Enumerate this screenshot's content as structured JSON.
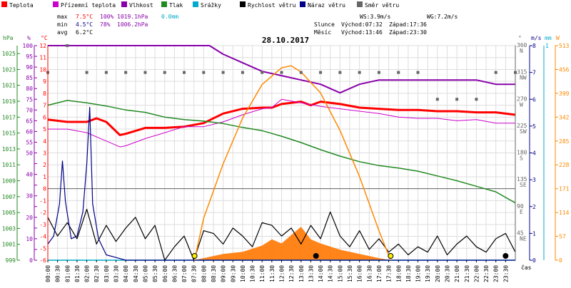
{
  "legend": [
    {
      "label": "Teplota",
      "color": "#ff0000",
      "kind": "line"
    },
    {
      "label": "Přízemní teplota",
      "color": "#cc00cc",
      "kind": "line"
    },
    {
      "label": "Vlhkost",
      "color": "#8800aa",
      "kind": "line"
    },
    {
      "label": "Tlak",
      "color": "#228822",
      "kind": "line"
    },
    {
      "label": "Srážky",
      "color": "#00aacc",
      "kind": "line"
    },
    {
      "label": "Rychlost větru",
      "color": "#000000",
      "kind": "line"
    },
    {
      "label": "Náraz větru",
      "color": "#000088",
      "kind": "line"
    },
    {
      "label": "Směr větru",
      "color": "#666666",
      "kind": "dot"
    }
  ],
  "stats": {
    "rows": [
      {
        "label": "max",
        "temp": "7.5°C",
        "hum": "100%",
        "press": "1019.1hPa",
        "rain": "0.0mm"
      },
      {
        "label": "min",
        "temp": "4.5°C",
        "hum": "78%",
        "press": "1006.2hPa",
        "rain": ""
      },
      {
        "label": "avg",
        "temp": "6.2°C",
        "hum": "",
        "press": "",
        "rain": ""
      }
    ]
  },
  "wind_info": {
    "ws": "WS:3.9m/s",
    "wg": "WG:7.2m/s"
  },
  "sun": {
    "label": "Slunce",
    "rise": "Východ:07:32",
    "set": "Západ:17:36"
  },
  "moon": {
    "label": "Měsíc",
    "rise": "Východ:13:46",
    "set": "Západ:23:30"
  },
  "chart_data": {
    "type": "line",
    "title": "28.10.2017",
    "xlabel": "čas",
    "x_ticks": [
      "00:00",
      "00:30",
      "01:00",
      "01:30",
      "02:00",
      "02:30",
      "03:00",
      "03:30",
      "04:00",
      "04:30",
      "05:00",
      "05:30",
      "06:00",
      "06:30",
      "07:00",
      "07:30",
      "08:00",
      "08:30",
      "09:00",
      "09:30",
      "10:00",
      "10:30",
      "11:00",
      "11:30",
      "12:00",
      "12:30",
      "13:00",
      "13:30",
      "14:00",
      "14:30",
      "15:00",
      "15:30",
      "16:00",
      "16:30",
      "17:00",
      "17:30",
      "18:00",
      "18:30",
      "19:00",
      "19:30",
      "20:00",
      "20:30",
      "21:00",
      "21:30",
      "22:00",
      "22:30",
      "23:00",
      "23:30"
    ],
    "axes": {
      "hpa": {
        "label": "hPa",
        "ticks": [
          "999",
          "1001",
          "1003",
          "1005",
          "1007",
          "1009",
          "1011",
          "1013",
          "1015",
          "1017",
          "1019",
          "1021",
          "1023",
          "1025"
        ],
        "range": [
          999,
          1026
        ]
      },
      "pct": {
        "label": "%",
        "ticks": [
          "0",
          "5",
          "10",
          "15",
          "20",
          "25",
          "30",
          "35",
          "40",
          "45",
          "50",
          "55",
          "60",
          "65",
          "70",
          "75",
          "80",
          "85",
          "90",
          "95",
          "100"
        ],
        "range": [
          0,
          100
        ]
      },
      "temp": {
        "label": "°C",
        "ticks": [
          "-6",
          "-5",
          "-4",
          "-3",
          "-2",
          "-1",
          "0",
          "1",
          "2",
          "3",
          "4",
          "5",
          "6",
          "7",
          "8",
          "9",
          "10",
          "11",
          "12"
        ],
        "range": [
          -6,
          12
        ]
      },
      "dir": {
        "label": "°",
        "ticks": [
          "360",
          "315",
          "270",
          "225",
          "180",
          "135",
          "90",
          "45"
        ],
        "names": [
          "N",
          "NW",
          "W",
          "SW",
          "S",
          "SE",
          "E",
          "NE"
        ],
        "range": [
          0,
          360
        ]
      },
      "ms": {
        "label": "m/s",
        "ticks": [
          "8",
          "7",
          "6",
          "5",
          "4",
          "3",
          "2",
          "1",
          "0"
        ],
        "range": [
          0,
          8
        ]
      },
      "mm": {
        "label": "mm",
        "ticks": [
          "1"
        ],
        "range": [
          0,
          1
        ]
      },
      "w": {
        "label": "W",
        "ticks": [
          "513",
          "456",
          "399",
          "342",
          "285",
          "228",
          "171",
          "114",
          "57",
          "0"
        ],
        "range": [
          0,
          513
        ]
      }
    },
    "zero_line": 0,
    "series": [
      {
        "name": "Teplota",
        "color": "#ff0000",
        "axis": "temp",
        "x": [
          0,
          1,
          2,
          2.5,
          3,
          3.7,
          4,
          5,
          6,
          7,
          8,
          9,
          10,
          11,
          11.5,
          12,
          13,
          13.5,
          14,
          15,
          16,
          17,
          18,
          19,
          20,
          21,
          22,
          23,
          24
        ],
        "y": [
          5.8,
          5.6,
          5.6,
          5.9,
          5.6,
          4.5,
          4.6,
          5.1,
          5.1,
          5.2,
          5.5,
          6.3,
          6.7,
          6.8,
          6.8,
          7.1,
          7.3,
          7.0,
          7.3,
          7.1,
          6.8,
          6.7,
          6.6,
          6.6,
          6.5,
          6.5,
          6.4,
          6.4,
          6.2
        ]
      },
      {
        "name": "Přízemní teplota",
        "color": "#cc00cc",
        "axis": "temp",
        "x": [
          0,
          1,
          2,
          3,
          3.7,
          4,
          5,
          6,
          7,
          8,
          9,
          10,
          11,
          11.5,
          12,
          13,
          14,
          15,
          16,
          17,
          18,
          19,
          20,
          21,
          22,
          23,
          24
        ],
        "y": [
          5.0,
          5.0,
          4.7,
          4.0,
          3.5,
          3.6,
          4.2,
          4.7,
          5.2,
          5.2,
          5.6,
          6.2,
          6.7,
          6.8,
          7.5,
          7.2,
          6.9,
          6.7,
          6.5,
          6.3,
          6.0,
          5.9,
          5.9,
          5.7,
          5.8,
          5.5,
          5.5
        ]
      },
      {
        "name": "Vlhkost",
        "color": "#8800aa",
        "axis": "pct",
        "x": [
          0,
          8.3,
          9,
          10,
          11,
          12,
          13,
          14,
          14.5,
          15,
          16,
          17,
          18,
          19,
          20,
          21,
          22,
          23,
          24
        ],
        "y": [
          100,
          100,
          96,
          92,
          88,
          86,
          84,
          82,
          80,
          78,
          82,
          84,
          84,
          84,
          84,
          84,
          84,
          82,
          82
        ]
      },
      {
        "name": "Tlak",
        "color": "#228822",
        "axis": "hpa",
        "x": [
          0,
          1,
          2,
          3,
          4,
          5,
          6,
          7,
          8,
          9,
          10,
          11,
          12,
          13,
          14,
          15,
          16,
          17,
          18,
          19,
          20,
          21,
          22,
          23,
          24
        ],
        "y": [
          1018.5,
          1019.1,
          1018.8,
          1018.4,
          1017.9,
          1017.6,
          1017.0,
          1016.7,
          1016.5,
          1016.2,
          1015.7,
          1015.3,
          1014.6,
          1013.8,
          1012.9,
          1012.1,
          1011.4,
          1010.9,
          1010.6,
          1010.2,
          1009.6,
          1009.0,
          1008.3,
          1007.6,
          1006.2
        ]
      },
      {
        "name": "Srážky",
        "color": "#00aacc",
        "axis": "mm",
        "x": [
          0,
          24
        ],
        "y": [
          0,
          0
        ]
      },
      {
        "name": "Rychlost větru",
        "color": "#000000",
        "axis": "ms",
        "x": [
          0,
          0.5,
          1,
          1.5,
          2,
          2.5,
          3,
          3.5,
          4,
          4.5,
          5,
          5.5,
          6,
          6.5,
          7,
          7.5,
          8,
          8.5,
          9,
          9.5,
          10,
          10.5,
          11,
          11.5,
          12,
          12.5,
          13,
          13.5,
          14,
          14.5,
          15,
          15.5,
          16,
          16.5,
          17,
          17.5,
          18,
          18.5,
          19,
          19.5,
          20,
          20.5,
          21,
          21.5,
          22,
          22.5,
          23,
          23.5,
          24
        ],
        "y": [
          1.6,
          0.9,
          1.4,
          0.8,
          1.9,
          0.6,
          1.3,
          0.7,
          1.2,
          1.6,
          0.8,
          1.3,
          0.0,
          0.5,
          0.9,
          0.0,
          1.1,
          1.0,
          0.6,
          1.2,
          0.9,
          0.5,
          1.4,
          1.3,
          0.9,
          1.2,
          0.6,
          1.3,
          0.8,
          1.8,
          0.9,
          0.5,
          1.1,
          0.4,
          0.8,
          0.3,
          0.6,
          0.2,
          0.5,
          0.3,
          0.9,
          0.2,
          0.6,
          0.9,
          0.5,
          0.3,
          0.8,
          1.0,
          0.3
        ]
      },
      {
        "name": "Náraz větru",
        "color": "#000088",
        "axis": "ms",
        "x": [
          0,
          0.3,
          0.6,
          0.75,
          0.9,
          1.2,
          1.5,
          1.8,
          2.0,
          2.15,
          2.3,
          2.6,
          3,
          3.5,
          4,
          24
        ],
        "y": [
          0.6,
          0.9,
          2.1,
          3.7,
          2.2,
          0.8,
          0.9,
          1.8,
          3.6,
          5.7,
          2.1,
          0.8,
          0.2,
          0.1,
          0,
          0
        ]
      },
      {
        "name": "Směr větru",
        "color": "#666666",
        "axis": "dir",
        "x": [
          0,
          1,
          2,
          3,
          4,
          5,
          6,
          7,
          8,
          9,
          10,
          11,
          12,
          13,
          14,
          15,
          16,
          17,
          18,
          19,
          20,
          21,
          22,
          23,
          24
        ],
        "y": [
          315,
          360,
          315,
          315,
          315,
          315,
          315,
          315,
          315,
          315,
          315,
          315,
          315,
          315,
          315,
          315,
          315,
          315,
          315,
          315,
          270,
          270,
          270,
          315,
          315
        ]
      },
      {
        "name": "Sluneční svit",
        "color": "#ff8800",
        "axis": "w",
        "x": [
          7.53,
          8,
          9,
          10,
          11,
          12,
          12.5,
          13,
          14,
          15,
          16,
          17,
          17.6
        ],
        "y": [
          0,
          100,
          230,
          340,
          420,
          460,
          465,
          450,
          400,
          310,
          200,
          70,
          0
        ]
      },
      {
        "name": "Srážky (plocha)",
        "color": "#ff7700",
        "axis": "w",
        "x": [
          7.5,
          9,
          10,
          11,
          11.5,
          12,
          12.5,
          13,
          13.5,
          14,
          15,
          16,
          17,
          17.6
        ],
        "y": [
          0,
          15,
          20,
          35,
          50,
          40,
          60,
          80,
          50,
          40,
          25,
          15,
          5,
          0
        ]
      }
    ],
    "sun_markers": [
      "07:32",
      "17:36"
    ],
    "moon_markers": [
      "13:46",
      "23:30"
    ]
  }
}
